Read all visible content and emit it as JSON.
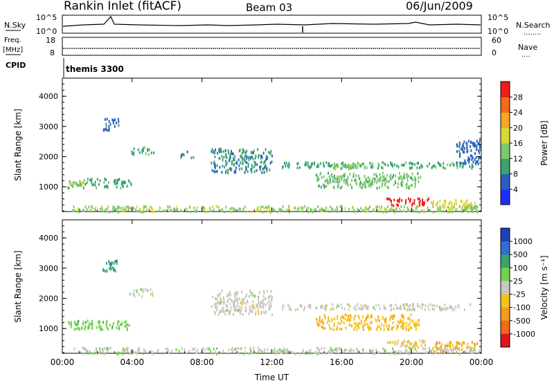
{
  "header": {
    "title": "Rankin Inlet (fitACF)",
    "beam": "Beam 03",
    "date": "06/Jun/2009"
  },
  "nsky_panel": {
    "left_label": "N.Sky",
    "left_ticks": [
      "10^5",
      "10^0"
    ],
    "right_ticks": [
      "10^5",
      "10^0"
    ],
    "right_label": "N.Search",
    "right_dots": "........"
  },
  "freq_panel": {
    "left_label_1": "Freq.",
    "left_label_2": "[MHz]",
    "left_ticks": [
      "18",
      "8"
    ],
    "right_ticks": [
      "60",
      "0"
    ],
    "right_label": "Nave",
    "right_dots": "...."
  },
  "cpid": {
    "label": "CPID",
    "program": "themis 3300"
  },
  "colors": {
    "power_scale": [
      "#1f2bff",
      "#2a5fc0",
      "#3aa36e",
      "#7cc96b",
      "#d8d832",
      "#f5a623",
      "#f26a1c",
      "#ee1c1c"
    ],
    "velocity_scale": [
      "#1f3fb5",
      "#2f6fd0",
      "#3aa36e",
      "#6fd24a",
      "#c8c8c0",
      "#f4c21d",
      "#f59a1c",
      "#ef6a1b",
      "#e0151e"
    ]
  },
  "chart_data": [
    {
      "type": "heatmap",
      "name": "power",
      "xlabel": "",
      "ylabel": "Slant Range [km]",
      "x_ticks": [
        "00:00",
        "04:00",
        "08:00",
        "12:00",
        "16:00",
        "20:00",
        "00:00"
      ],
      "y_ticks": [
        "1000",
        "2000",
        "3000",
        "4000"
      ],
      "xlim": [
        0,
        24
      ],
      "ylim": [
        180,
        4600
      ],
      "colorbar": {
        "label": "Power [dB]",
        "ticks": [
          "4",
          "8",
          "12",
          "16",
          "20",
          "24",
          "28"
        ],
        "range": [
          0,
          30
        ]
      },
      "features": [
        {
          "x": [
            0.3,
            4.0
          ],
          "y": [
            1000,
            1300
          ],
          "value": 10
        },
        {
          "x": [
            0.3,
            1.2
          ],
          "y": [
            1050,
            1200
          ],
          "value": 16
        },
        {
          "x": [
            3.8,
            5.2
          ],
          "y": [
            2100,
            2350
          ],
          "value": 10
        },
        {
          "x": [
            6.7,
            7.5
          ],
          "y": [
            2000,
            2200
          ],
          "value": 8
        },
        {
          "x": [
            2.3,
            3.2
          ],
          "y": [
            2900,
            3300
          ],
          "value": 6
        },
        {
          "x": [
            8.5,
            12.0
          ],
          "y": [
            1500,
            2300
          ],
          "value": 8
        },
        {
          "x": [
            12.5,
            23.5
          ],
          "y": [
            1650,
            1850
          ],
          "value": 10
        },
        {
          "x": [
            15.5,
            17.5
          ],
          "y": [
            1600,
            1800
          ],
          "value": 14
        },
        {
          "x": [
            14.5,
            20.5
          ],
          "y": [
            1000,
            1500
          ],
          "value": 12
        },
        {
          "x": [
            18.5,
            21.0
          ],
          "y": [
            400,
            650
          ],
          "value": 28
        },
        {
          "x": [
            21.0,
            23.8
          ],
          "y": [
            350,
            600
          ],
          "value": 18
        },
        {
          "x": [
            22.5,
            23.9
          ],
          "y": [
            1800,
            2600
          ],
          "value": 6
        },
        {
          "x": [
            0.5,
            23.9
          ],
          "y": [
            200,
            400
          ],
          "value": 14
        }
      ]
    },
    {
      "type": "heatmap",
      "name": "velocity",
      "xlabel": "Time UT",
      "ylabel": "Slant Range [km]",
      "x_ticks": [
        "00:00",
        "04:00",
        "08:00",
        "12:00",
        "16:00",
        "20:00",
        "00:00"
      ],
      "y_ticks": [
        "1000",
        "2000",
        "3000",
        "4000"
      ],
      "xlim": [
        0,
        24
      ],
      "ylim": [
        180,
        4600
      ],
      "colorbar": {
        "label": "Velocity [m s⁻¹]",
        "ticks": [
          "1000",
          "500",
          "100",
          "25",
          "-25",
          "-100",
          "-500",
          "-1000"
        ],
        "range": [
          -1200,
          1200
        ]
      },
      "features": [
        {
          "x": [
            0.3,
            4.0
          ],
          "y": [
            1000,
            1300
          ],
          "value": 300
        },
        {
          "x": [
            3.8,
            5.2
          ],
          "y": [
            2100,
            2350
          ],
          "value": 0
        },
        {
          "x": [
            2.3,
            3.2
          ],
          "y": [
            2900,
            3300
          ],
          "value": 600
        },
        {
          "x": [
            8.5,
            12.0
          ],
          "y": [
            1500,
            2300
          ],
          "value": 0
        },
        {
          "x": [
            12.5,
            23.5
          ],
          "y": [
            1650,
            1850
          ],
          "value": 0
        },
        {
          "x": [
            14.5,
            20.5
          ],
          "y": [
            1000,
            1500
          ],
          "value": -300
        },
        {
          "x": [
            18.5,
            21.0
          ],
          "y": [
            400,
            650
          ],
          "value": -150
        },
        {
          "x": [
            21.0,
            23.8
          ],
          "y": [
            250,
            600
          ],
          "value": -400
        },
        {
          "x": [
            0.5,
            23.9
          ],
          "y": [
            200,
            400
          ],
          "value": 60
        }
      ]
    }
  ]
}
